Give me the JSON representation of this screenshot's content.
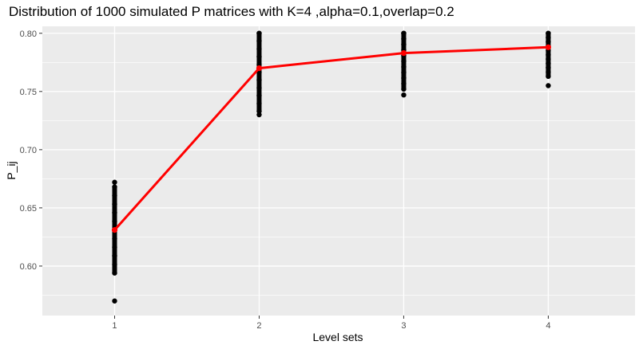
{
  "chart_data": {
    "type": "scatter",
    "title": "Distribution of 1000 simulated P matrices with K=4 ,alpha=0.1,overlap=0.2",
    "xlabel": "Level sets",
    "ylabel": "P_ij",
    "categories": [
      "1",
      "2",
      "3",
      "4"
    ],
    "xlim": [
      0.5,
      4.6
    ],
    "ylim": [
      0.5575,
      0.806
    ],
    "y_ticks": [
      "0.60",
      "0.65",
      "0.70",
      "0.75",
      "0.80"
    ],
    "grid": true,
    "legend": "none",
    "colors": {
      "panel_background": "#ebebeb",
      "grid": "#ffffff",
      "points": "#000000",
      "mean_line": "#ff0000",
      "tick_text": "#4d4d4d"
    },
    "distributions": [
      {
        "level": "1",
        "min": 0.57,
        "dense_min": 0.594,
        "dense_max": 0.668,
        "max": 0.672
      },
      {
        "level": "2",
        "min": 0.73,
        "dense_min": 0.733,
        "dense_max": 0.8,
        "max": 0.8
      },
      {
        "level": "3",
        "min": 0.747,
        "dense_min": 0.752,
        "dense_max": 0.8,
        "max": 0.8
      },
      {
        "level": "4",
        "min": 0.755,
        "dense_min": 0.763,
        "dense_max": 0.8,
        "max": 0.8
      }
    ],
    "series": [
      {
        "values": [
          0.631,
          0.77,
          0.783,
          0.788
        ]
      }
    ]
  }
}
